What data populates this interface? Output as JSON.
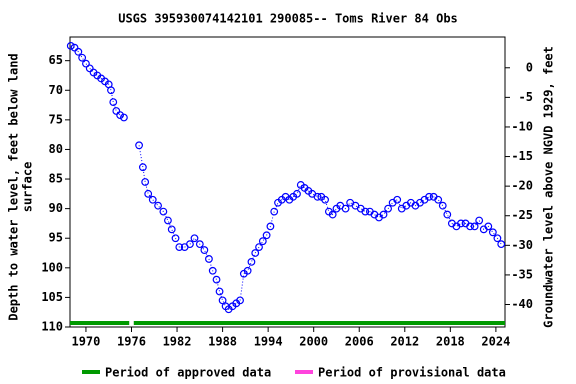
{
  "chart_data": {
    "type": "line",
    "title": "USGS 395930074142101 290085-- Toms River 84 Obs",
    "y_label": [
      "Depth to water level, feet below land",
      "surface"
    ],
    "y2_label": "Groundwater level above NGVD 1929, feet",
    "xlim": [
      1967.9,
      2025.2
    ],
    "xticks": [
      1970,
      1976,
      1982,
      1988,
      1994,
      2000,
      2006,
      2012,
      2018,
      2024
    ],
    "ylim": [
      110,
      61
    ],
    "yticks": [
      65,
      70,
      75,
      80,
      85,
      90,
      95,
      100,
      105,
      110
    ],
    "y2lim": [
      -43.8,
      5.2
    ],
    "y2ticks": [
      0,
      -5,
      -10,
      -15,
      -20,
      -25,
      -30,
      -35,
      -40
    ],
    "x": [
      1968.0,
      1968.5,
      1969,
      1969.5,
      1970,
      1970.5,
      1971,
      1971.5,
      1972,
      1972.5,
      1973,
      1973.3,
      1973.6,
      1974,
      1974.5,
      1975,
      1976,
      1977,
      1977.5,
      1977.8,
      1978.2,
      1978.8,
      1979.5,
      1980.2,
      1980.8,
      1981.3,
      1981.8,
      1982.3,
      1983,
      1983.7,
      1984.3,
      1985,
      1985.6,
      1986.2,
      1986.7,
      1987.2,
      1987.6,
      1988,
      1988.4,
      1988.8,
      1989.3,
      1989.8,
      1990.3,
      1990.8,
      1991.3,
      1991.8,
      1992.3,
      1992.8,
      1993.3,
      1993.8,
      1994.3,
      1994.8,
      1995.3,
      1995.8,
      1996.3,
      1996.8,
      1997.3,
      1997.8,
      1998.3,
      1998.8,
      1999.3,
      1999.8,
      2000.5,
      2001,
      2001.5,
      2002,
      2002.5,
      2003,
      2003.5,
      2004.2,
      2004.8,
      2005.5,
      2006.2,
      2006.8,
      2007.4,
      2008,
      2008.6,
      2009.2,
      2009.8,
      2010.4,
      2011,
      2011.6,
      2012.2,
      2012.8,
      2013.4,
      2014,
      2014.6,
      2015.2,
      2015.8,
      2016.4,
      2017,
      2017.6,
      2018.2,
      2018.8,
      2019.4,
      2020,
      2020.6,
      2021.2,
      2021.8,
      2022.4,
      2023,
      2023.6,
      2024.2,
      2024.7
    ],
    "series": [
      {
        "name": "Depth to water level",
        "color": "#0000ff",
        "values": [
          62.5,
          62.8,
          63.5,
          64.5,
          65.5,
          66.3,
          67,
          67.5,
          68,
          68.5,
          69,
          70,
          72,
          73.5,
          74.2,
          74.6,
          null,
          79.3,
          83,
          85.5,
          87.5,
          88.5,
          89.5,
          90.5,
          92,
          93.5,
          95,
          96.5,
          96.5,
          96,
          95,
          96,
          97,
          98.5,
          100.5,
          102,
          104,
          105.5,
          106.5,
          107,
          106.5,
          106,
          105.5,
          101,
          100.5,
          99,
          97.5,
          96.5,
          95.5,
          94.5,
          93,
          90.5,
          89,
          88.5,
          88,
          88.5,
          88,
          87.5,
          86,
          86.5,
          87,
          87.5,
          88,
          88,
          88.5,
          90.5,
          91,
          90,
          89.5,
          90,
          89,
          89.5,
          90,
          90.5,
          90.5,
          91,
          91.5,
          91,
          90,
          89,
          88.5,
          90,
          89.5,
          89,
          89.5,
          89,
          88.5,
          88,
          88,
          88.5,
          89.5,
          91,
          92.5,
          93,
          92.5,
          92.5,
          93,
          93,
          92,
          93.5,
          93,
          94,
          95,
          96
        ]
      }
    ],
    "periods": [
      {
        "name": "Period of approved data",
        "color": "#009900",
        "ranges": [
          [
            1967.9,
            1975.7
          ],
          [
            1976.3,
            2025.2
          ]
        ]
      },
      {
        "name": "Period of provisional data",
        "color": "#ff44dd",
        "ranges": []
      }
    ]
  }
}
